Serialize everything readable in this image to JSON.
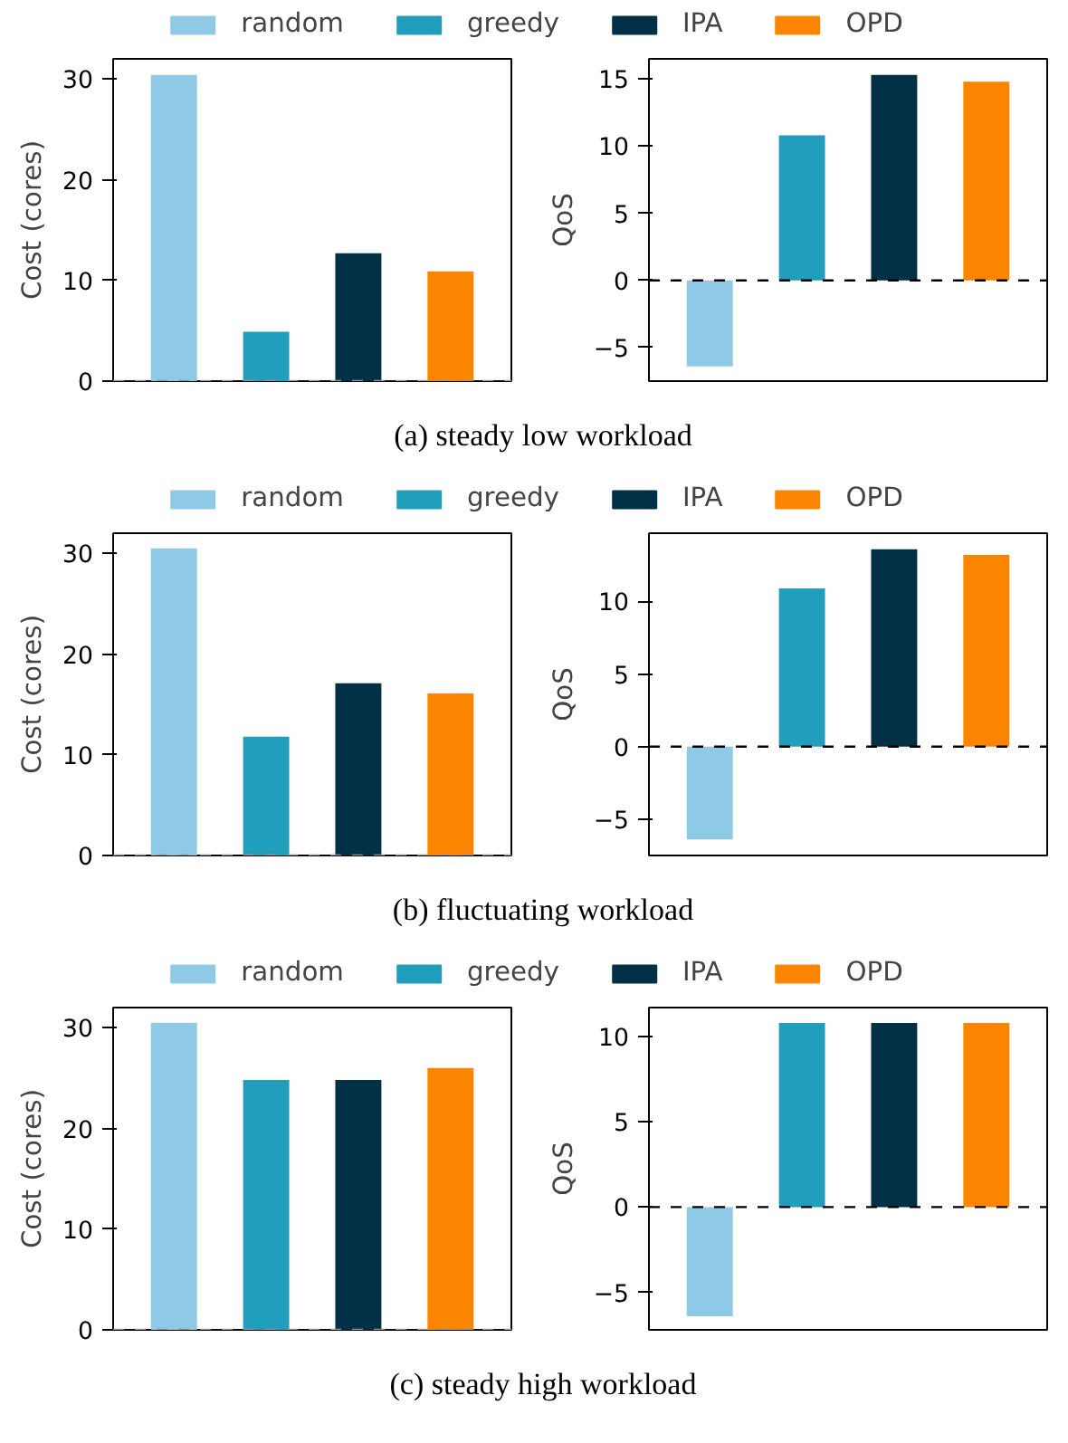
{
  "chart_data": [
    {
      "type": "bar",
      "categories": [
        null
      ],
      "ylabel": "Cost (cores)",
      "ylim": [
        0,
        32
      ],
      "yticks": [
        0,
        10,
        20,
        30
      ],
      "tick_labels": "y",
      "legend": "top",
      "grid": false,
      "annotations": [
        "(a) steady low workload"
      ],
      "ref_lines": [
        {
          "axis": "y",
          "value": 0,
          "color": "#999999",
          "line_style": "dashed"
        }
      ],
      "series": [
        {
          "name": "random",
          "color": "#8ecae6",
          "values": [
            30.4
          ]
        },
        {
          "name": "greedy",
          "color": "#219ebc",
          "values": [
            4.9
          ]
        },
        {
          "name": "IPA",
          "color": "#023047",
          "values": [
            12.7
          ]
        },
        {
          "name": "OPD",
          "color": "#fb8500",
          "values": [
            10.9
          ]
        }
      ]
    },
    {
      "type": "bar",
      "categories": [
        null
      ],
      "ylabel": "QoS",
      "ylim": [
        -7.5,
        16.5
      ],
      "yticks": [
        -5,
        0,
        5,
        10,
        15
      ],
      "tick_labels": "y",
      "grid": false,
      "ref_lines": [
        {
          "axis": "y",
          "value": 0,
          "color": "#000000",
          "line_style": "dashed"
        }
      ],
      "series": [
        {
          "color": "#8ecae6",
          "values": [
            -6.4
          ]
        },
        {
          "color": "#219ebc",
          "values": [
            10.8
          ]
        },
        {
          "color": "#023047",
          "values": [
            15.3
          ]
        },
        {
          "color": "#fb8500",
          "values": [
            14.8
          ]
        }
      ]
    },
    {
      "type": "bar",
      "categories": [
        null
      ],
      "ylabel": "Cost (cores)",
      "ylim": [
        0,
        32
      ],
      "yticks": [
        0,
        10,
        20,
        30
      ],
      "tick_labels": "y",
      "legend": "top",
      "grid": false,
      "annotations": [
        "(b) fluctuating workload"
      ],
      "ref_lines": [
        {
          "axis": "y",
          "value": 0,
          "color": "#999999",
          "line_style": "dashed"
        }
      ],
      "series": [
        {
          "name": "random",
          "color": "#8ecae6",
          "values": [
            30.5
          ]
        },
        {
          "name": "greedy",
          "color": "#219ebc",
          "values": [
            11.8
          ]
        },
        {
          "name": "IPA",
          "color": "#023047",
          "values": [
            17.1
          ]
        },
        {
          "name": "OPD",
          "color": "#fb8500",
          "values": [
            16.1
          ]
        }
      ]
    },
    {
      "type": "bar",
      "categories": [
        null
      ],
      "ylabel": "QoS",
      "ylim": [
        -7.5,
        14.7
      ],
      "yticks": [
        -5,
        0,
        5,
        10
      ],
      "tick_labels": "y",
      "grid": false,
      "ref_lines": [
        {
          "axis": "y",
          "value": 0,
          "color": "#000000",
          "line_style": "dashed"
        }
      ],
      "series": [
        {
          "color": "#8ecae6",
          "values": [
            -6.4
          ]
        },
        {
          "color": "#219ebc",
          "values": [
            10.9
          ]
        },
        {
          "color": "#023047",
          "values": [
            13.6
          ]
        },
        {
          "color": "#fb8500",
          "values": [
            13.2
          ]
        }
      ]
    },
    {
      "type": "bar",
      "categories": [
        null
      ],
      "ylabel": "Cost (cores)",
      "ylim": [
        0,
        32
      ],
      "yticks": [
        0,
        10,
        20,
        30
      ],
      "tick_labels": "y",
      "legend": "top",
      "grid": false,
      "annotations": [
        "(c) steady high workload"
      ],
      "ref_lines": [
        {
          "axis": "y",
          "value": 0,
          "color": "#999999",
          "line_style": "dashed"
        }
      ],
      "series": [
        {
          "name": "random",
          "color": "#8ecae6",
          "values": [
            30.5
          ]
        },
        {
          "name": "greedy",
          "color": "#219ebc",
          "values": [
            24.8
          ]
        },
        {
          "name": "IPA",
          "color": "#023047",
          "values": [
            24.8
          ]
        },
        {
          "name": "OPD",
          "color": "#fb8500",
          "values": [
            26.0
          ]
        }
      ]
    },
    {
      "type": "bar",
      "categories": [
        null
      ],
      "ylabel": "QoS",
      "ylim": [
        -7.2,
        11.7
      ],
      "yticks": [
        -5,
        0,
        5,
        10
      ],
      "tick_labels": "y",
      "grid": false,
      "ref_lines": [
        {
          "axis": "y",
          "value": 0,
          "color": "#000000",
          "line_style": "dashed"
        }
      ],
      "series": [
        {
          "color": "#8ecae6",
          "values": [
            -6.4
          ]
        },
        {
          "color": "#219ebc",
          "values": [
            10.8
          ]
        },
        {
          "color": "#023047",
          "values": [
            10.8
          ]
        },
        {
          "color": "#fb8500",
          "values": [
            10.8
          ]
        }
      ]
    }
  ]
}
